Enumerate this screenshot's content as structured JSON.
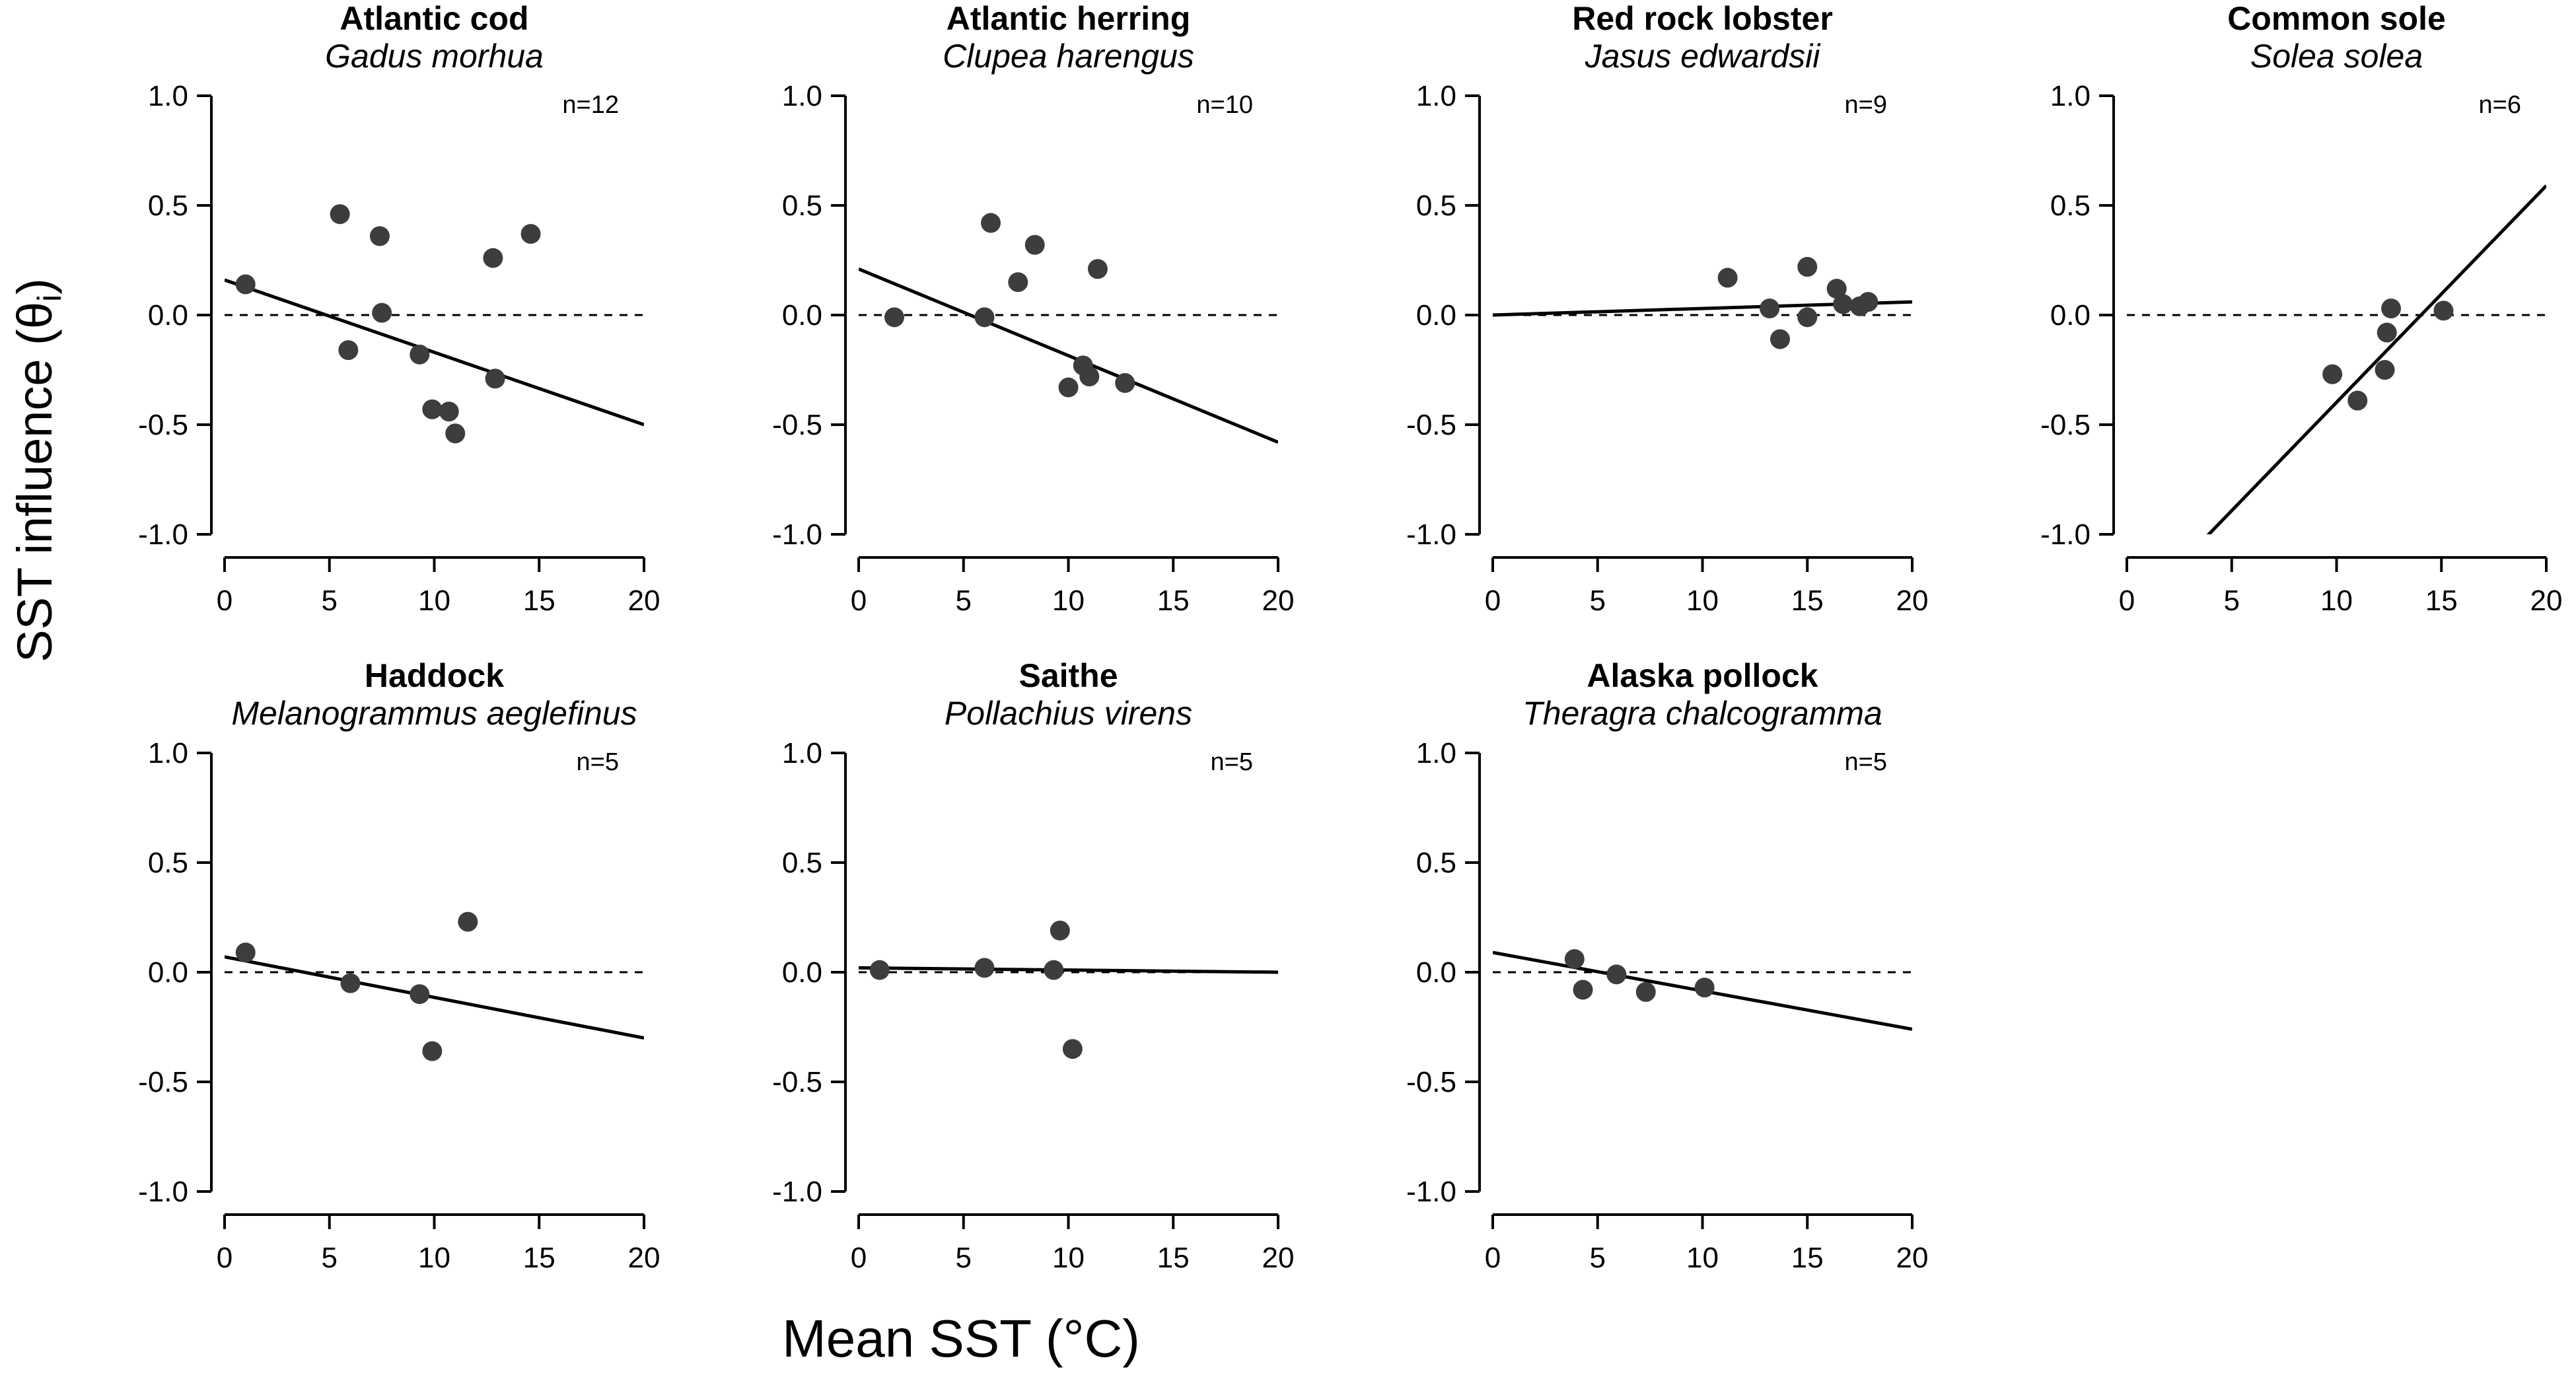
{
  "figure": {
    "ylabel": "SST influence (θ",
    "ylabel_sub": "i",
    "ylabel_end": ")",
    "xlabel": "Mean SST (°C)"
  },
  "chart_data": [
    {
      "type": "scatter",
      "title": "Atlantic cod",
      "subtitle": "Gadus morhua",
      "annotation": "n=12",
      "xlim": [
        0,
        20
      ],
      "ylim": [
        -1.0,
        1.0
      ],
      "xticks": [
        0,
        5,
        10,
        15,
        20
      ],
      "yticks": [
        "-1.0",
        "-0.5",
        "0.0",
        "0.5",
        "1.0"
      ],
      "points": [
        [
          1.0,
          0.14
        ],
        [
          5.5,
          0.46
        ],
        [
          5.9,
          -0.16
        ],
        [
          7.4,
          0.36
        ],
        [
          7.5,
          0.01
        ],
        [
          9.3,
          -0.18
        ],
        [
          9.9,
          -0.43
        ],
        [
          10.7,
          -0.44
        ],
        [
          11.0,
          -0.54
        ],
        [
          12.8,
          0.26
        ],
        [
          12.9,
          -0.29
        ],
        [
          14.6,
          0.37
        ]
      ],
      "fit": [
        [
          0,
          0.16
        ],
        [
          20,
          -0.5
        ]
      ],
      "reference_line_y": 0
    },
    {
      "type": "scatter",
      "title": "Atlantic herring",
      "subtitle": "Clupea harengus",
      "annotation": "n=10",
      "xlim": [
        0,
        20
      ],
      "ylim": [
        -1.0,
        1.0
      ],
      "xticks": [
        0,
        5,
        10,
        15,
        20
      ],
      "yticks": [
        "-1.0",
        "-0.5",
        "0.0",
        "0.5",
        "1.0"
      ],
      "points": [
        [
          1.7,
          -0.01
        ],
        [
          6.0,
          -0.01
        ],
        [
          6.3,
          0.42
        ],
        [
          7.6,
          0.15
        ],
        [
          8.4,
          0.32
        ],
        [
          10.0,
          -0.33
        ],
        [
          10.7,
          -0.23
        ],
        [
          11.0,
          -0.28
        ],
        [
          11.4,
          0.21
        ],
        [
          12.7,
          -0.31
        ]
      ],
      "fit": [
        [
          0,
          0.21
        ],
        [
          20,
          -0.58
        ]
      ],
      "reference_line_y": 0
    },
    {
      "type": "scatter",
      "title": "Red rock lobster",
      "subtitle": "Jasus edwardsii",
      "annotation": "n=9",
      "xlim": [
        0,
        20
      ],
      "ylim": [
        -1.0,
        1.0
      ],
      "xticks": [
        0,
        5,
        10,
        15,
        20
      ],
      "yticks": [
        "-1.0",
        "-0.5",
        "0.0",
        "0.5",
        "1.0"
      ],
      "points": [
        [
          11.2,
          0.17
        ],
        [
          13.2,
          0.03
        ],
        [
          13.7,
          -0.11
        ],
        [
          15.0,
          0.22
        ],
        [
          15.0,
          -0.01
        ],
        [
          16.4,
          0.12
        ],
        [
          16.7,
          0.05
        ],
        [
          17.5,
          0.04
        ],
        [
          17.9,
          0.06
        ]
      ],
      "fit": [
        [
          0,
          0.0
        ],
        [
          20,
          0.06
        ]
      ],
      "reference_line_y": 0
    },
    {
      "type": "scatter",
      "title": "Common sole",
      "subtitle": "Solea solea",
      "annotation": "n=6",
      "xlim": [
        0,
        20
      ],
      "ylim": [
        -1.0,
        1.0
      ],
      "xticks": [
        0,
        5,
        10,
        15,
        20
      ],
      "yticks": [
        "-1.0",
        "-0.5",
        "0.0",
        "0.5",
        "1.0"
      ],
      "points": [
        [
          9.8,
          -0.27
        ],
        [
          11.0,
          -0.39
        ],
        [
          12.3,
          -0.25
        ],
        [
          12.4,
          -0.08
        ],
        [
          12.6,
          0.03
        ],
        [
          15.1,
          0.02
        ]
      ],
      "fit": [
        [
          3.3,
          -1.06
        ],
        [
          20,
          0.59
        ]
      ],
      "reference_line_y": 0
    },
    {
      "type": "scatter",
      "title": "Haddock",
      "subtitle": "Melanogrammus aeglefinus",
      "annotation": "n=5",
      "xlim": [
        0,
        20
      ],
      "ylim": [
        -1.0,
        1.0
      ],
      "xticks": [
        0,
        5,
        10,
        15,
        20
      ],
      "yticks": [
        "-1.0",
        "-0.5",
        "0.0",
        "0.5",
        "1.0"
      ],
      "points": [
        [
          1.0,
          0.09
        ],
        [
          6.0,
          -0.05
        ],
        [
          9.3,
          -0.1
        ],
        [
          9.9,
          -0.36
        ],
        [
          11.6,
          0.23
        ]
      ],
      "fit": [
        [
          0,
          0.07
        ],
        [
          20,
          -0.3
        ]
      ],
      "reference_line_y": 0
    },
    {
      "type": "scatter",
      "title": "Saithe",
      "subtitle": "Pollachius virens",
      "annotation": "n=5",
      "xlim": [
        0,
        20
      ],
      "ylim": [
        -1.0,
        1.0
      ],
      "xticks": [
        0,
        5,
        10,
        15,
        20
      ],
      "yticks": [
        "-1.0",
        "-0.5",
        "0.0",
        "0.5",
        "1.0"
      ],
      "points": [
        [
          1.0,
          0.01
        ],
        [
          6.0,
          0.02
        ],
        [
          9.3,
          0.01
        ],
        [
          9.6,
          0.19
        ],
        [
          10.2,
          -0.35
        ]
      ],
      "fit": [
        [
          0,
          0.02
        ],
        [
          20,
          0.0
        ]
      ],
      "reference_line_y": 0
    },
    {
      "type": "scatter",
      "title": "Alaska pollock",
      "subtitle": "Theragra chalcogramma",
      "annotation": "n=5",
      "xlim": [
        0,
        20
      ],
      "ylim": [
        -1.0,
        1.0
      ],
      "xticks": [
        0,
        5,
        10,
        15,
        20
      ],
      "yticks": [
        "-1.0",
        "-0.5",
        "0.0",
        "0.5",
        "1.0"
      ],
      "points": [
        [
          3.9,
          0.06
        ],
        [
          4.3,
          -0.08
        ],
        [
          5.9,
          -0.01
        ],
        [
          7.3,
          -0.09
        ],
        [
          10.1,
          -0.07
        ]
      ],
      "fit": [
        [
          0,
          0.09
        ],
        [
          20,
          -0.26
        ]
      ],
      "reference_line_y": 0
    }
  ]
}
